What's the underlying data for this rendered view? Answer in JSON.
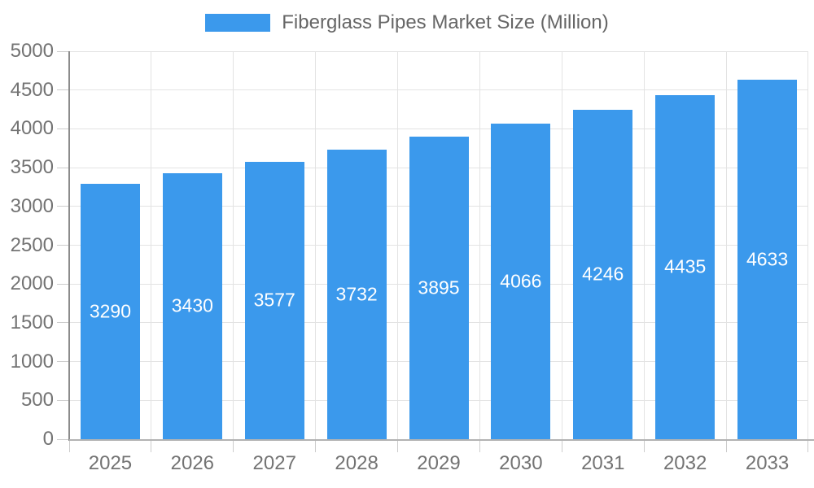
{
  "chart_data": {
    "type": "bar",
    "title": "Fiberglass Pipes Market Size (Million)",
    "categories": [
      "2025",
      "2026",
      "2027",
      "2028",
      "2029",
      "2030",
      "2031",
      "2032",
      "2033"
    ],
    "values": [
      3290,
      3430,
      3577,
      3732,
      3895,
      4066,
      4246,
      4435,
      4633
    ],
    "xlabel": "",
    "ylabel": "",
    "ylim": [
      0,
      5000
    ],
    "ytick_step": 500,
    "y_tick_labels": [
      "0",
      "500",
      "1000",
      "1500",
      "2000",
      "2500",
      "3000",
      "3500",
      "4000",
      "4500",
      "5000"
    ],
    "grid": true,
    "legend_position": "top",
    "bar_color": "#3B99EC",
    "value_label_color": "#ffffff",
    "axis_text_color": "#737373",
    "gridline_color": "#e3e3e3"
  },
  "legend": {
    "label": "Fiberglass Pipes Market Size (Million)",
    "swatch_color": "#3B99EC"
  }
}
